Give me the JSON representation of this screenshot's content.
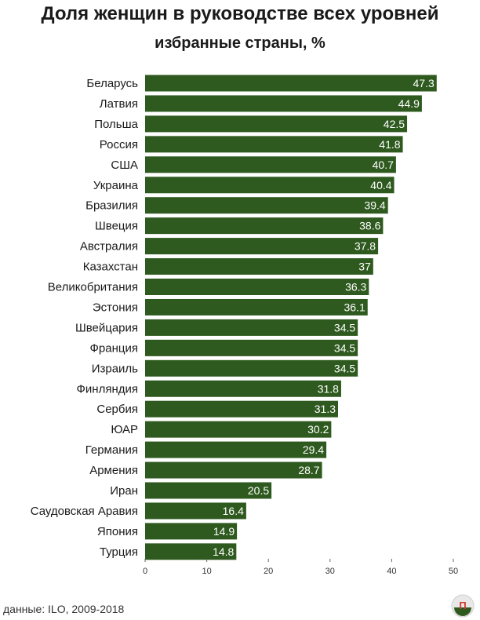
{
  "chart_data": {
    "type": "bar",
    "orientation": "horizontal",
    "title": "Доля женщин в руководстве всех уровней",
    "subtitle": "избранные страны, %",
    "categories": [
      "Беларусь",
      "Латвия",
      "Польша",
      "Россия",
      "США",
      "Украина",
      "Бразилия",
      "Швеция",
      "Австралия",
      "Казахстан",
      "Великобритания",
      "Эстония",
      "Швейцария",
      "Франция",
      "Израиль",
      "Финляндия",
      "Сербия",
      "ЮАР",
      "Германия",
      "Армения",
      "Иран",
      "Саудовская Аравия",
      "Япония",
      "Турция"
    ],
    "values": [
      47.3,
      44.9,
      42.5,
      41.8,
      40.7,
      40.4,
      39.4,
      38.6,
      37.8,
      37,
      36.3,
      36.1,
      34.5,
      34.5,
      34.5,
      31.8,
      31.3,
      30.2,
      29.4,
      28.7,
      20.5,
      16.4,
      14.9,
      14.8
    ],
    "xlim": [
      0,
      50
    ],
    "xticks": [
      0,
      10,
      20,
      30,
      40,
      50
    ],
    "grid": false,
    "bar_color": "#2f5a1f",
    "label_color": "#ffffff"
  },
  "source": "данные: ILO, 2009-2018",
  "logo_text": "П"
}
